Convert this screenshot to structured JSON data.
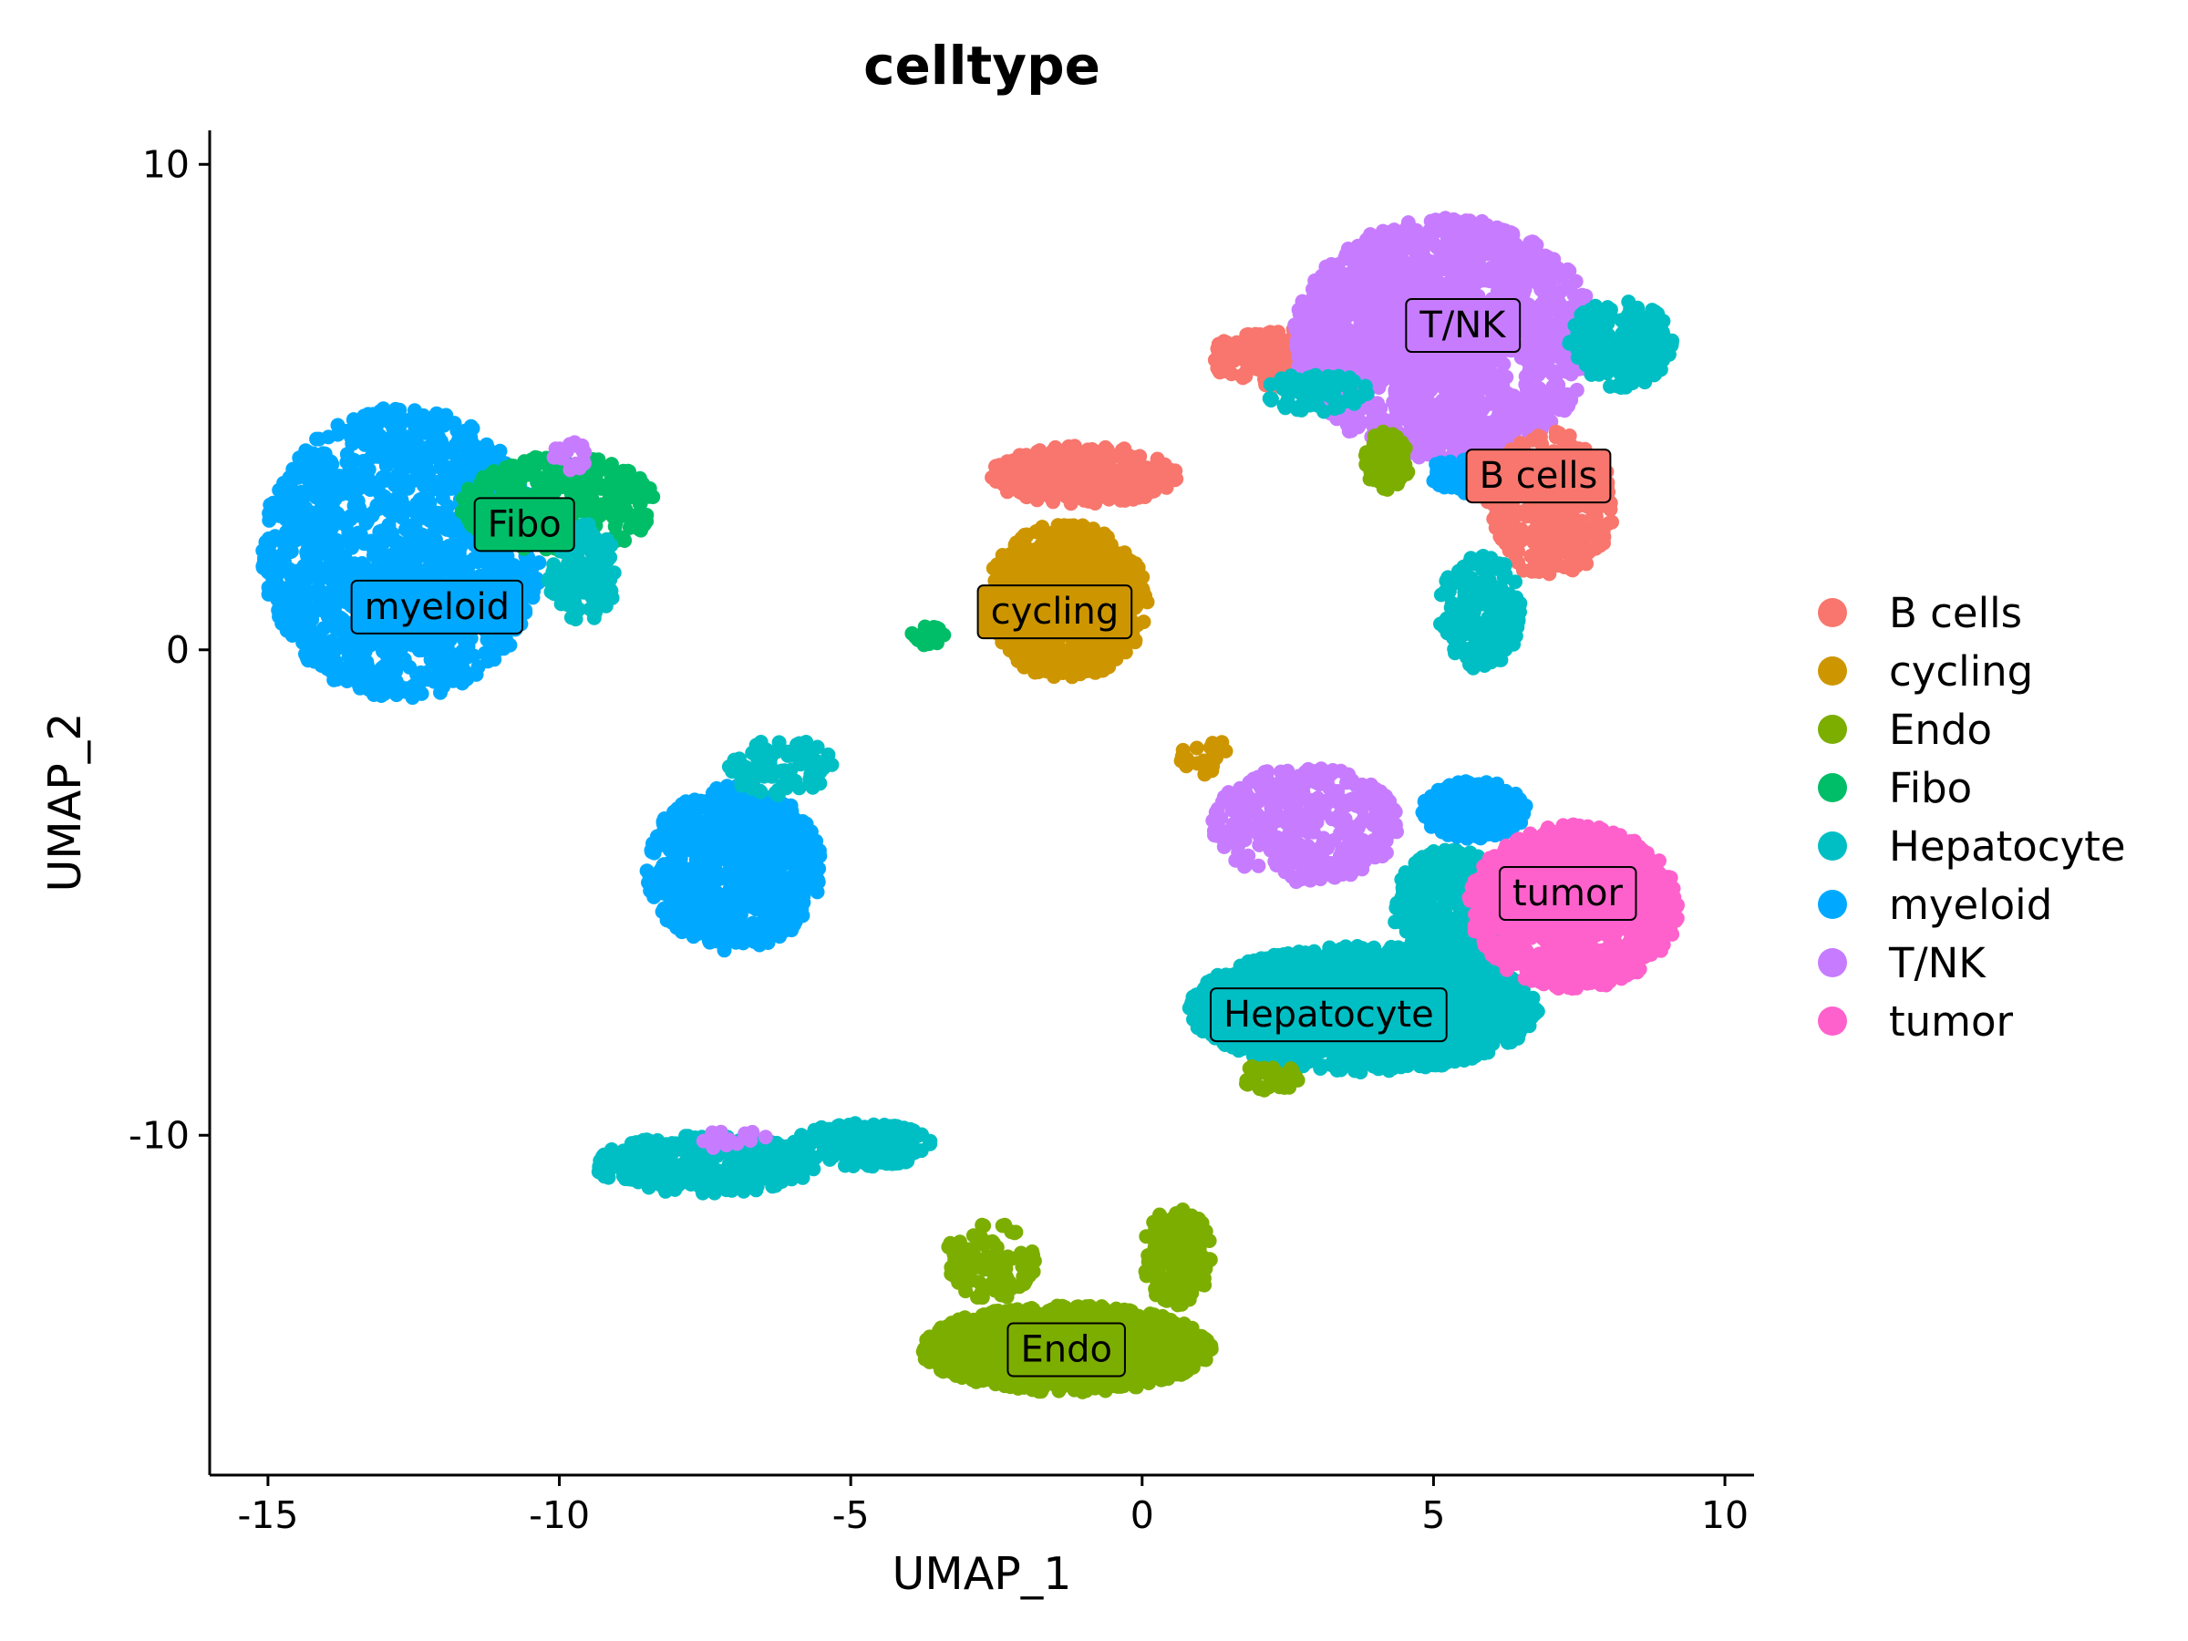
{
  "chart_data": {
    "type": "scatter",
    "title": "celltype",
    "xlabel": "UMAP_1",
    "ylabel": "UMAP_2",
    "xlim": [
      -16,
      10.5
    ],
    "ylim": [
      -17,
      10.7
    ],
    "xticks": [
      -15,
      -10,
      -5,
      0,
      5,
      10
    ],
    "xtick_labels": [
      "-15",
      "-10",
      "-5",
      "0",
      "5",
      "10"
    ],
    "yticks": [
      10,
      0,
      -10
    ],
    "ytick_labels": [
      "10",
      "0",
      "-10"
    ],
    "grid": false,
    "legend_position": "right",
    "legend": [
      {
        "name": "B cells",
        "color": "#F8766D"
      },
      {
        "name": "cycling",
        "color": "#CD9600"
      },
      {
        "name": "Endo",
        "color": "#7CAE00"
      },
      {
        "name": "Fibo",
        "color": "#00BE67"
      },
      {
        "name": "Hepatocyte",
        "color": "#00BFC4"
      },
      {
        "name": "myeloid",
        "color": "#00A9FF"
      },
      {
        "name": "T/NK",
        "color": "#C77CFF"
      },
      {
        "name": "tumor",
        "color": "#FF61CC"
      }
    ],
    "cluster_labels": [
      {
        "text": "T/NK",
        "x": 5.5,
        "y": 6.7,
        "color": "#C77CFF"
      },
      {
        "text": "B cells",
        "x": 6.8,
        "y": 3.6,
        "color": "#F8766D"
      },
      {
        "text": "Fibo",
        "x": -10.6,
        "y": 2.6,
        "color": "#00BE67"
      },
      {
        "text": "myeloid",
        "x": -12.1,
        "y": 0.9,
        "color": "#00A9FF"
      },
      {
        "text": "cycling",
        "x": -1.5,
        "y": 0.8,
        "color": "#CD9600"
      },
      {
        "text": "tumor",
        "x": 7.3,
        "y": -5.0,
        "color": "#FF61CC"
      },
      {
        "text": "Hepatocyte",
        "x": 3.2,
        "y": -7.5,
        "color": "#00BFC4"
      },
      {
        "text": "Endo",
        "x": -1.3,
        "y": -14.4,
        "color": "#7CAE00"
      }
    ],
    "clusters": [
      {
        "celltype": "myeloid",
        "color": "#00A9FF",
        "cx": -12.7,
        "cy": 2.0,
        "rx": 2.4,
        "ry": 3.0,
        "n": 1400
      },
      {
        "celltype": "Fibo",
        "color": "#00BE67",
        "cx": -10.0,
        "cy": 3.0,
        "rx": 1.7,
        "ry": 1.0,
        "n": 300
      },
      {
        "celltype": "Hepatocyte",
        "color": "#00BFC4",
        "cx": -9.6,
        "cy": 1.6,
        "rx": 0.6,
        "ry": 1.0,
        "n": 120
      },
      {
        "celltype": "T/NK",
        "color": "#C77CFF",
        "cx": -9.8,
        "cy": 4.0,
        "rx": 0.3,
        "ry": 0.3,
        "n": 20
      },
      {
        "celltype": "myeloid",
        "color": "#00A9FF",
        "cx": -7.0,
        "cy": -4.5,
        "rx": 1.5,
        "ry": 1.7,
        "n": 700
      },
      {
        "celltype": "Hepatocyte",
        "color": "#00BFC4",
        "cx": -6.2,
        "cy": -2.4,
        "rx": 0.9,
        "ry": 0.6,
        "n": 80
      },
      {
        "celltype": "Hepatocyte",
        "color": "#00BFC4",
        "cx": -7.5,
        "cy": -10.6,
        "rx": 1.9,
        "ry": 0.6,
        "n": 350
      },
      {
        "celltype": "Hepatocyte",
        "color": "#00BFC4",
        "cx": -4.8,
        "cy": -10.2,
        "rx": 1.2,
        "ry": 0.45,
        "n": 150
      },
      {
        "celltype": "T/NK",
        "color": "#C77CFF",
        "cx": -7.0,
        "cy": -10.1,
        "rx": 0.6,
        "ry": 0.2,
        "n": 15
      },
      {
        "celltype": "cycling",
        "color": "#CD9600",
        "cx": -1.3,
        "cy": 1.0,
        "rx": 1.4,
        "ry": 1.6,
        "n": 700
      },
      {
        "celltype": "B cells",
        "color": "#F8766D",
        "cx": -1.0,
        "cy": 3.6,
        "rx": 1.6,
        "ry": 0.6,
        "n": 300
      },
      {
        "celltype": "B cells",
        "color": "#F8766D",
        "cx": 2.6,
        "cy": 6.0,
        "rx": 1.5,
        "ry": 0.6,
        "n": 250
      },
      {
        "celltype": "Fibo",
        "color": "#00BE67",
        "cx": -3.7,
        "cy": 0.3,
        "rx": 0.3,
        "ry": 0.2,
        "n": 20
      },
      {
        "celltype": "T/NK",
        "color": "#C77CFF",
        "cx": 5.2,
        "cy": 6.4,
        "rx": 2.6,
        "ry": 2.5,
        "n": 1600
      },
      {
        "celltype": "Hepatocyte",
        "color": "#00BFC4",
        "cx": 8.2,
        "cy": 6.3,
        "rx": 0.9,
        "ry": 0.9,
        "n": 200
      },
      {
        "celltype": "Hepatocyte",
        "color": "#00BFC4",
        "cx": 3.0,
        "cy": 5.3,
        "rx": 0.9,
        "ry": 0.4,
        "n": 80
      },
      {
        "celltype": "B cells",
        "color": "#F8766D",
        "cx": 7.0,
        "cy": 3.0,
        "rx": 1.1,
        "ry": 1.5,
        "n": 300
      },
      {
        "celltype": "myeloid",
        "color": "#00A9FF",
        "cx": 5.5,
        "cy": 3.6,
        "rx": 0.6,
        "ry": 0.4,
        "n": 60
      },
      {
        "celltype": "Endo",
        "color": "#7CAE00",
        "cx": 4.2,
        "cy": 3.9,
        "rx": 0.4,
        "ry": 0.6,
        "n": 80
      },
      {
        "celltype": "Hepatocyte",
        "color": "#00BFC4",
        "cx": 5.8,
        "cy": 0.8,
        "rx": 0.7,
        "ry": 1.2,
        "n": 200
      },
      {
        "celltype": "T/NK",
        "color": "#C77CFF",
        "cx": 2.8,
        "cy": -3.6,
        "rx": 1.6,
        "ry": 1.2,
        "n": 350
      },
      {
        "celltype": "cycling",
        "color": "#CD9600",
        "cx": 1.1,
        "cy": -2.2,
        "rx": 0.5,
        "ry": 0.4,
        "n": 20
      },
      {
        "celltype": "Hepatocyte",
        "color": "#00BFC4",
        "cx": 3.8,
        "cy": -7.4,
        "rx": 3.0,
        "ry": 1.3,
        "n": 1500
      },
      {
        "celltype": "Hepatocyte",
        "color": "#00BFC4",
        "cx": 5.3,
        "cy": -5.3,
        "rx": 1.0,
        "ry": 1.2,
        "n": 300
      },
      {
        "celltype": "myeloid",
        "color": "#00A9FF",
        "cx": 5.7,
        "cy": -3.3,
        "rx": 0.9,
        "ry": 0.6,
        "n": 250
      },
      {
        "celltype": "tumor",
        "color": "#FF61CC",
        "cx": 7.4,
        "cy": -5.3,
        "rx": 1.8,
        "ry": 1.7,
        "n": 1000
      },
      {
        "celltype": "Endo",
        "color": "#7CAE00",
        "cx": 2.2,
        "cy": -8.8,
        "rx": 0.5,
        "ry": 0.3,
        "n": 40
      },
      {
        "celltype": "Endo",
        "color": "#7CAE00",
        "cx": -1.3,
        "cy": -14.4,
        "rx": 2.5,
        "ry": 0.9,
        "n": 1000
      },
      {
        "celltype": "Endo",
        "color": "#7CAE00",
        "cx": 0.6,
        "cy": -12.5,
        "rx": 0.6,
        "ry": 1.0,
        "n": 150
      },
      {
        "celltype": "Endo",
        "color": "#7CAE00",
        "cx": -2.6,
        "cy": -12.6,
        "rx": 0.8,
        "ry": 0.8,
        "n": 100
      }
    ]
  }
}
